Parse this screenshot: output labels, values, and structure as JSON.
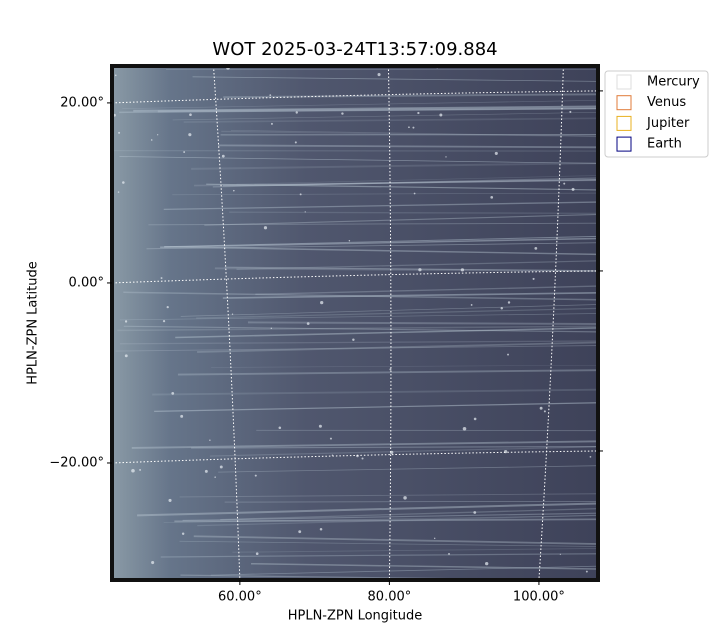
{
  "chart_data": {
    "type": "image",
    "title": "WOT 2025-03-24T13:57:09.884",
    "xlabel": "HPLN-ZPN Longitude",
    "ylabel": "HPLN-ZPN Latitude",
    "xlim": [
      42.9,
      107.9
    ],
    "ylim": [
      -33.0,
      24.1
    ],
    "xticks": [
      {
        "value": 60,
        "label": "60.00°"
      },
      {
        "value": 80,
        "label": "80.00°"
      },
      {
        "value": 100,
        "label": "100.00°"
      }
    ],
    "yticks": [
      {
        "value": 20,
        "label": "20.00°"
      },
      {
        "value": 0,
        "label": "0.00°"
      },
      {
        "value": -20,
        "label": "−20.00°"
      }
    ],
    "grid": true,
    "legend": [
      {
        "name": "Mercury",
        "color": "#dddddd"
      },
      {
        "name": "Venus",
        "color": "#e07b39"
      },
      {
        "name": "Jupiter",
        "color": "#e8b020"
      },
      {
        "name": "Earth",
        "color": "#000080"
      }
    ],
    "legend_position": "upper right outside"
  }
}
